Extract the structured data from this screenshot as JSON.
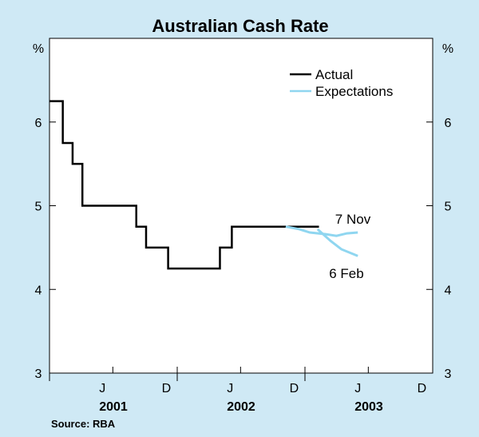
{
  "chart_data": {
    "type": "line",
    "title": "Australian Cash Rate",
    "ylabel_left": "%",
    "ylabel_right": "%",
    "ylim": [
      3,
      7
    ],
    "yticks": [
      3,
      4,
      5,
      6
    ],
    "x_month_ticks": [
      "J",
      "D",
      "J",
      "D",
      "J",
      "D"
    ],
    "x_years": [
      "2001",
      "2002",
      "2003"
    ],
    "xlim": [
      "2001-01",
      "2003-12"
    ],
    "legend": {
      "position": "top-right",
      "items": [
        "Actual",
        "Expectations"
      ]
    },
    "series": [
      {
        "name": "Actual",
        "color": "#000000",
        "style": "step",
        "points": [
          [
            "2001-01-01",
            6.25
          ],
          [
            "2001-02-08",
            5.75
          ],
          [
            "2001-03-08",
            5.5
          ],
          [
            "2001-04-05",
            5.0
          ],
          [
            "2001-09-06",
            4.75
          ],
          [
            "2001-10-04",
            4.5
          ],
          [
            "2001-12-06",
            4.25
          ],
          [
            "2002-05-03",
            4.5
          ],
          [
            "2002-06-06",
            4.75
          ],
          [
            "2003-02-10",
            4.75
          ]
        ]
      },
      {
        "name": "Expectations",
        "color": "#8fd6f0",
        "annotation": "7 Nov",
        "points": [
          [
            "2002-11-07",
            4.75
          ],
          [
            "2002-12-15",
            4.72
          ],
          [
            "2003-01-15",
            4.68
          ],
          [
            "2003-03-01",
            4.66
          ],
          [
            "2003-04-01",
            4.64
          ],
          [
            "2003-05-01",
            4.67
          ],
          [
            "2003-06-01",
            4.68
          ]
        ]
      },
      {
        "name": "Expectations",
        "color": "#8fd6f0",
        "annotation": "6 Feb",
        "points": [
          [
            "2003-02-06",
            4.72
          ],
          [
            "2003-03-15",
            4.58
          ],
          [
            "2003-04-15",
            4.48
          ],
          [
            "2003-06-01",
            4.4
          ]
        ]
      }
    ],
    "annotations": [
      "7 Nov",
      "6 Feb"
    ],
    "source": "Source: RBA"
  }
}
